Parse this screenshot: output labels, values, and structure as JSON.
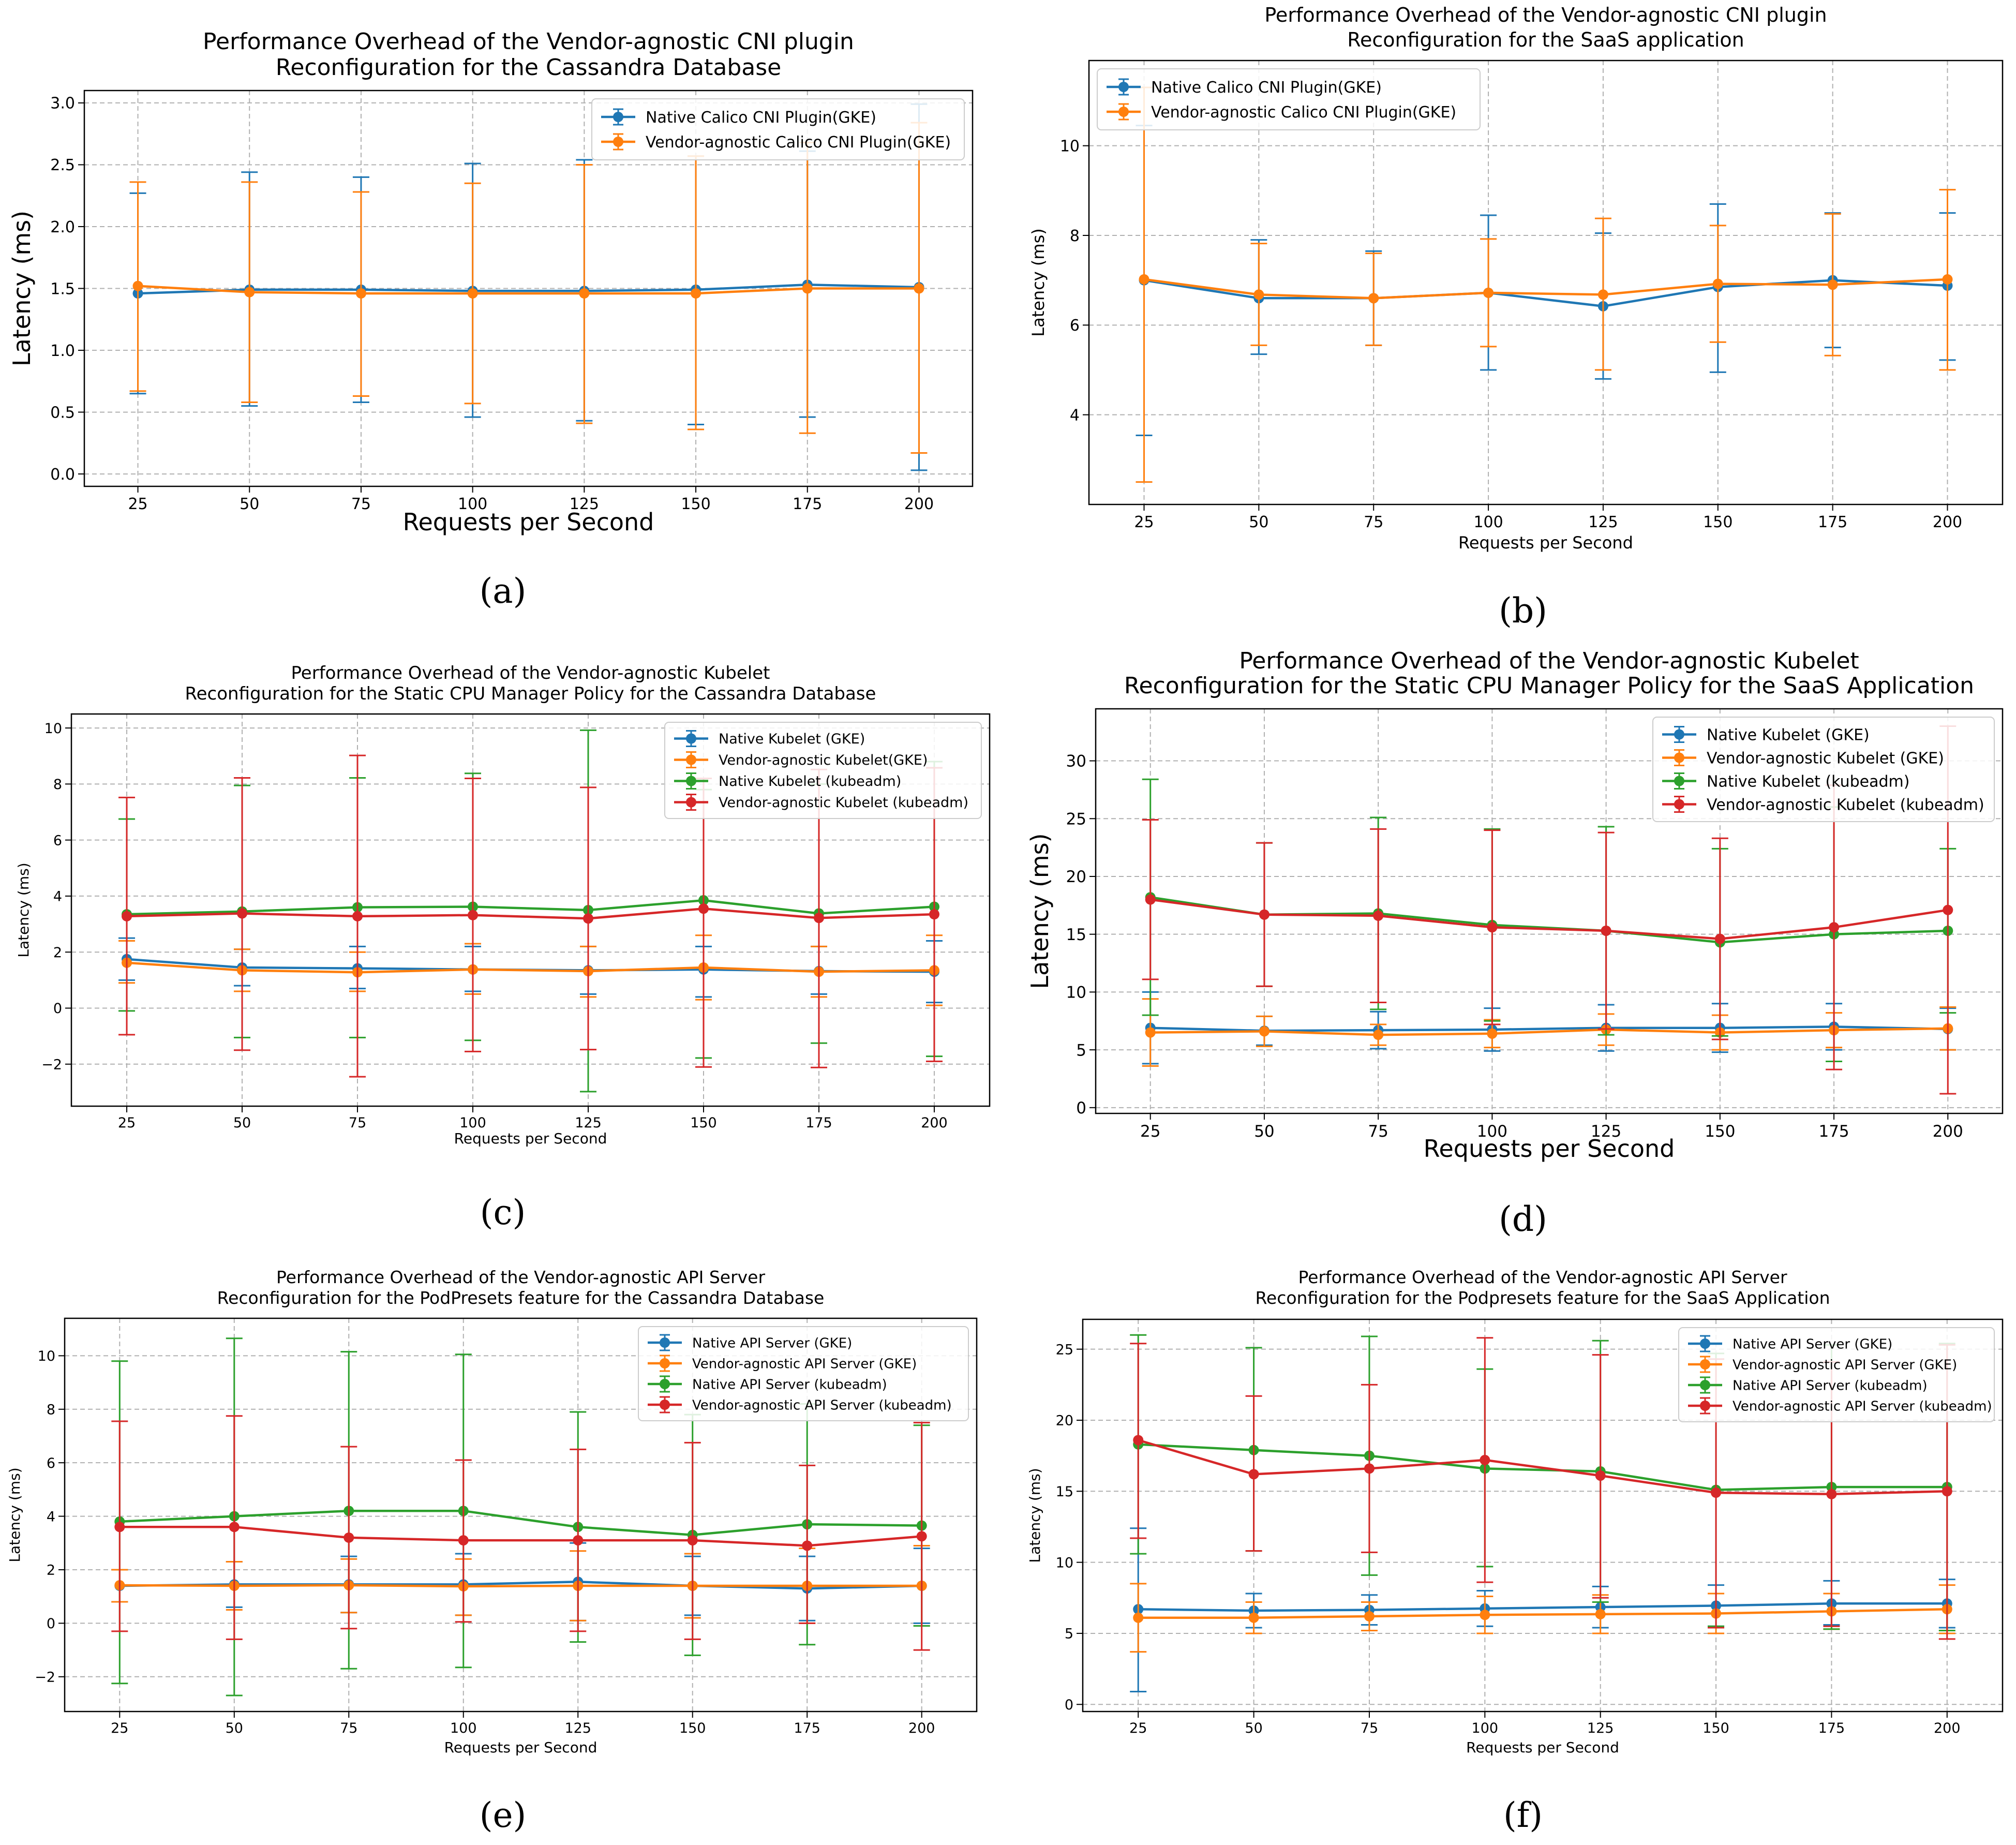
{
  "figure": {
    "captions": [
      "(a)",
      "(b)",
      "(c)",
      "(d)",
      "(e)",
      "(f)"
    ]
  },
  "chart_data": [
    {
      "id": "a",
      "type": "line",
      "title": "Performance Overhead of the Vendor-agnostic CNI plugin\nReconfiguration for the Cassandra Database",
      "xlabel": "Requests per Second",
      "ylabel": "Latency (ms)",
      "categories": [
        25,
        50,
        75,
        100,
        125,
        150,
        175,
        200
      ],
      "xlim": [
        13,
        212
      ],
      "ylim": [
        -0.1,
        3.1
      ],
      "yticks": [
        0.0,
        0.5,
        1.0,
        1.5,
        2.0,
        2.5,
        3.0
      ],
      "ytick_labels": [
        "0.0",
        "0.5",
        "1.0",
        "1.5",
        "2.0",
        "2.5",
        "3.0"
      ],
      "grid": true,
      "legend": "top-right",
      "series": [
        {
          "name": "Native Calico CNI Plugin(GKE)",
          "color": "#1f77b4",
          "values": [
            1.46,
            1.49,
            1.49,
            1.48,
            1.48,
            1.49,
            1.53,
            1.51
          ],
          "err_low": [
            0.65,
            0.55,
            0.58,
            0.46,
            0.43,
            0.4,
            0.46,
            0.03
          ],
          "err_high": [
            2.27,
            2.44,
            2.4,
            2.51,
            2.54,
            2.57,
            2.61,
            2.99
          ]
        },
        {
          "name": "Vendor-agnostic Calico CNI Plugin(GKE)",
          "color": "#ff7f0e",
          "values": [
            1.52,
            1.47,
            1.46,
            1.46,
            1.46,
            1.46,
            1.5,
            1.5
          ],
          "err_low": [
            0.67,
            0.58,
            0.63,
            0.57,
            0.41,
            0.36,
            0.33,
            0.17
          ],
          "err_high": [
            2.36,
            2.36,
            2.28,
            2.35,
            2.5,
            2.57,
            2.68,
            2.84
          ]
        }
      ]
    },
    {
      "id": "b",
      "type": "line",
      "title": "Performance Overhead of the Vendor-agnostic CNI plugin\nReconfiguration for the SaaS application",
      "xlabel": "Requests per Second",
      "ylabel": "Latency (ms)",
      "categories": [
        25,
        50,
        75,
        100,
        125,
        150,
        175,
        200
      ],
      "xlim": [
        13,
        212
      ],
      "ylim": [
        2.0,
        11.9
      ],
      "yticks": [
        4,
        6,
        8,
        10
      ],
      "ytick_labels": [
        "4",
        "6",
        "8",
        "10"
      ],
      "grid": true,
      "legend": "top-left",
      "series": [
        {
          "name": "Native Calico CNI Plugin(GKE)",
          "color": "#1f77b4",
          "values": [
            7.0,
            6.6,
            6.6,
            6.72,
            6.42,
            6.85,
            7.0,
            6.88
          ],
          "err_low": [
            3.54,
            5.35,
            5.55,
            5.0,
            4.8,
            4.95,
            5.5,
            5.22
          ],
          "err_high": [
            10.45,
            7.9,
            7.65,
            8.45,
            8.05,
            8.7,
            8.5,
            8.5
          ]
        },
        {
          "name": "Vendor-agnostic Calico CNI Plugin(GKE)",
          "color": "#ff7f0e",
          "values": [
            7.02,
            6.68,
            6.6,
            6.72,
            6.68,
            6.92,
            6.9,
            7.02
          ],
          "err_low": [
            2.5,
            5.55,
            5.55,
            5.52,
            5.0,
            5.62,
            5.32,
            5.0
          ],
          "err_high": [
            11.3,
            7.82,
            7.6,
            7.92,
            8.38,
            8.22,
            8.48,
            9.02
          ]
        }
      ]
    },
    {
      "id": "c",
      "type": "line",
      "title": "Performance Overhead of the Vendor-agnostic Kubelet\nReconfiguration for the Static CPU Manager Policy for the Cassandra Database",
      "xlabel": "Requests per Second",
      "ylabel": "Latency (ms)",
      "categories": [
        25,
        50,
        75,
        100,
        125,
        150,
        175,
        200
      ],
      "xlim": [
        13,
        212
      ],
      "ylim": [
        -3.5,
        10.5
      ],
      "yticks": [
        -2,
        0,
        2,
        4,
        6,
        8,
        10
      ],
      "ytick_labels": [
        "−2",
        "0",
        "2",
        "4",
        "6",
        "8",
        "10"
      ],
      "grid": true,
      "legend": "top-right",
      "series": [
        {
          "name": "Native Kubelet (GKE)",
          "color": "#1f77b4",
          "values": [
            1.75,
            1.45,
            1.42,
            1.38,
            1.35,
            1.38,
            1.32,
            1.3
          ],
          "err_low": [
            1.0,
            0.8,
            0.7,
            0.6,
            0.5,
            0.4,
            0.5,
            0.2
          ],
          "err_high": [
            2.5,
            2.1,
            2.2,
            2.2,
            2.2,
            2.2,
            2.2,
            2.4
          ]
        },
        {
          "name": "Vendor-agnostic Kubelet(GKE)",
          "color": "#ff7f0e",
          "values": [
            1.62,
            1.35,
            1.28,
            1.38,
            1.32,
            1.45,
            1.3,
            1.35
          ],
          "err_low": [
            0.9,
            0.6,
            0.6,
            0.5,
            0.4,
            0.3,
            0.4,
            0.1
          ],
          "err_high": [
            2.4,
            2.1,
            2.0,
            2.3,
            2.2,
            2.6,
            2.2,
            2.6
          ]
        },
        {
          "name": "Native Kubelet (kubeadm)",
          "color": "#2ca02c",
          "values": [
            3.35,
            3.45,
            3.6,
            3.62,
            3.5,
            3.85,
            3.38,
            3.62
          ],
          "err_low": [
            -0.1,
            -1.05,
            -1.05,
            -1.15,
            -2.98,
            -1.78,
            -1.25,
            -1.72
          ],
          "err_high": [
            6.75,
            7.95,
            8.22,
            8.38,
            9.92,
            7.8,
            8.0,
            8.8
          ]
        },
        {
          "name": "Vendor-agnostic Kubelet (kubeadm)",
          "color": "#d62728",
          "values": [
            3.28,
            3.38,
            3.28,
            3.32,
            3.2,
            3.55,
            3.22,
            3.35
          ],
          "err_low": [
            -0.95,
            -1.5,
            -2.45,
            -1.55,
            -1.48,
            -2.1,
            -2.12,
            -1.9
          ],
          "err_high": [
            7.52,
            8.22,
            9.02,
            8.2,
            7.88,
            8.2,
            8.52,
            8.58
          ]
        }
      ]
    },
    {
      "id": "d",
      "type": "line",
      "title": "Performance Overhead of the Vendor-agnostic Kubelet\nReconfiguration for the Static CPU Manager Policy for the SaaS Application",
      "xlabel": "Requests per Second",
      "ylabel": "Latency (ms)",
      "categories": [
        25,
        50,
        75,
        100,
        125,
        150,
        175,
        200
      ],
      "xlim": [
        13,
        212
      ],
      "ylim": [
        -0.5,
        34.5
      ],
      "yticks": [
        0,
        5,
        10,
        15,
        20,
        25,
        30
      ],
      "ytick_labels": [
        "0",
        "5",
        "10",
        "15",
        "20",
        "25",
        "30"
      ],
      "grid": true,
      "legend": "top-right",
      "series": [
        {
          "name": "Native Kubelet (GKE)",
          "color": "#1f77b4",
          "values": [
            6.9,
            6.65,
            6.7,
            6.75,
            6.9,
            6.9,
            7.0,
            6.8
          ],
          "err_low": [
            3.8,
            5.4,
            5.1,
            4.9,
            4.9,
            4.8,
            5.0,
            5.0
          ],
          "err_high": [
            10.0,
            7.9,
            8.3,
            8.6,
            8.9,
            9.0,
            9.0,
            8.6
          ]
        },
        {
          "name": "Vendor-agnostic Kubelet (GKE)",
          "color": "#ff7f0e",
          "values": [
            6.5,
            6.6,
            6.3,
            6.4,
            6.75,
            6.5,
            6.7,
            6.85
          ],
          "err_low": [
            3.6,
            5.3,
            5.4,
            5.2,
            5.4,
            5.0,
            5.2,
            5.0
          ],
          "err_high": [
            9.4,
            7.9,
            7.2,
            7.6,
            8.1,
            8.0,
            8.2,
            8.7
          ]
        },
        {
          "name": "Native Kubelet (kubeadm)",
          "color": "#2ca02c",
          "values": [
            18.2,
            16.7,
            16.8,
            15.8,
            15.3,
            14.3,
            15.0,
            15.3
          ],
          "err_low": [
            8.0,
            10.5,
            8.5,
            7.5,
            6.3,
            6.2,
            4.0,
            8.2
          ],
          "err_high": [
            28.4,
            22.9,
            25.1,
            24.1,
            24.3,
            22.4,
            26.0,
            22.4
          ]
        },
        {
          "name": "Vendor-agnostic Kubelet (kubeadm)",
          "color": "#d62728",
          "values": [
            18.0,
            16.7,
            16.6,
            15.6,
            15.3,
            14.6,
            15.6,
            17.1
          ],
          "err_low": [
            11.1,
            10.5,
            9.1,
            7.2,
            6.8,
            5.9,
            3.3,
            1.2
          ],
          "err_high": [
            24.9,
            22.9,
            24.1,
            24.0,
            23.8,
            23.3,
            27.9,
            33.0
          ]
        }
      ]
    },
    {
      "id": "e",
      "type": "line",
      "title": "Performance Overhead of the Vendor-agnostic API Server\nReconfiguration for the PodPresets feature for the Cassandra Database",
      "xlabel": "Requests per Second",
      "ylabel": "Latency (ms)",
      "categories": [
        25,
        50,
        75,
        100,
        125,
        150,
        175,
        200
      ],
      "xlim": [
        13,
        212
      ],
      "ylim": [
        -3.3,
        11.4
      ],
      "yticks": [
        -2,
        0,
        2,
        4,
        6,
        8,
        10
      ],
      "ytick_labels": [
        "−2",
        "0",
        "2",
        "4",
        "6",
        "8",
        "10"
      ],
      "grid": true,
      "legend": "top-right",
      "series": [
        {
          "name": "Native API Server (GKE)",
          "color": "#1f77b4",
          "values": [
            1.4,
            1.45,
            1.45,
            1.45,
            1.55,
            1.4,
            1.3,
            1.4
          ],
          "err_low": [
            0.8,
            0.6,
            0.4,
            0.3,
            0.1,
            0.3,
            0.1,
            0.0
          ],
          "err_high": [
            2.0,
            2.3,
            2.5,
            2.6,
            3.0,
            2.5,
            2.5,
            2.8
          ]
        },
        {
          "name": "Vendor-agnostic API Server (GKE)",
          "color": "#ff7f0e",
          "values": [
            1.42,
            1.4,
            1.42,
            1.38,
            1.4,
            1.4,
            1.4,
            1.4
          ],
          "err_low": [
            0.8,
            0.5,
            0.4,
            0.3,
            0.1,
            0.2,
            0.0,
            -0.1
          ],
          "err_high": [
            2.0,
            2.3,
            2.4,
            2.4,
            2.7,
            2.6,
            2.8,
            2.9
          ]
        },
        {
          "name": "Native API Server (kubeadm)",
          "color": "#2ca02c",
          "values": [
            3.8,
            4.0,
            4.2,
            4.2,
            3.6,
            3.3,
            3.7,
            3.65
          ],
          "err_low": [
            -2.25,
            -2.7,
            -1.7,
            -1.65,
            -0.7,
            -1.2,
            -0.8,
            -0.1
          ],
          "err_high": [
            9.8,
            10.65,
            10.15,
            10.05,
            7.9,
            7.8,
            8.2,
            7.4
          ]
        },
        {
          "name": "Vendor-agnostic API Server (kubeadm)",
          "color": "#d62728",
          "values": [
            3.6,
            3.6,
            3.2,
            3.1,
            3.1,
            3.1,
            2.9,
            3.25
          ],
          "err_low": [
            -0.3,
            -0.6,
            -0.2,
            0.05,
            -0.3,
            -0.6,
            0.0,
            -1.0
          ],
          "err_high": [
            7.55,
            7.75,
            6.6,
            6.1,
            6.5,
            6.75,
            5.9,
            7.5
          ]
        }
      ]
    },
    {
      "id": "f",
      "type": "line",
      "title": "Performance Overhead of the Vendor-agnostic API Server\nReconfiguration for the Podpresets feature for the SaaS Application",
      "xlabel": "Requests per Second",
      "ylabel": "Latency (ms)",
      "categories": [
        25,
        50,
        75,
        100,
        125,
        150,
        175,
        200
      ],
      "xlim": [
        13,
        212
      ],
      "ylim": [
        -0.5,
        27.1
      ],
      "yticks": [
        0,
        5,
        10,
        15,
        20,
        25
      ],
      "ytick_labels": [
        "0",
        "5",
        "10",
        "15",
        "20",
        "25"
      ],
      "grid": true,
      "legend": "top-right",
      "series": [
        {
          "name": "Native API Server (GKE)",
          "color": "#1f77b4",
          "values": [
            6.7,
            6.6,
            6.65,
            6.75,
            6.85,
            6.95,
            7.1,
            7.1
          ],
          "err_low": [
            0.9,
            5.4,
            5.6,
            5.5,
            5.4,
            5.5,
            5.6,
            5.4
          ],
          "err_high": [
            12.4,
            7.8,
            7.7,
            8.0,
            8.3,
            8.4,
            8.7,
            8.8
          ]
        },
        {
          "name": "Vendor-agnostic API Server (GKE)",
          "color": "#ff7f0e",
          "values": [
            6.1,
            6.1,
            6.2,
            6.3,
            6.35,
            6.4,
            6.55,
            6.7
          ],
          "err_low": [
            3.7,
            5.0,
            5.2,
            5.0,
            5.0,
            5.0,
            5.3,
            5.0
          ],
          "err_high": [
            8.5,
            7.2,
            7.2,
            7.6,
            7.7,
            7.8,
            7.8,
            8.4
          ]
        },
        {
          "name": "Native API Server (kubeadm)",
          "color": "#2ca02c",
          "values": [
            18.3,
            17.9,
            17.5,
            16.6,
            16.4,
            15.1,
            15.3,
            15.3
          ],
          "err_low": [
            10.6,
            10.8,
            9.1,
            9.7,
            7.2,
            5.5,
            5.3,
            5.2
          ],
          "err_high": [
            26.0,
            25.1,
            25.9,
            23.6,
            25.6,
            24.7,
            25.3,
            25.4
          ]
        },
        {
          "name": "Vendor-agnostic API Server (kubeadm)",
          "color": "#d62728",
          "values": [
            18.6,
            16.2,
            16.6,
            17.2,
            16.1,
            14.9,
            14.8,
            15.0
          ],
          "err_low": [
            11.7,
            10.8,
            10.7,
            8.6,
            7.5,
            5.4,
            5.5,
            4.6
          ],
          "err_high": [
            25.4,
            21.7,
            22.5,
            25.8,
            24.6,
            24.3,
            24.1,
            25.3
          ]
        }
      ]
    }
  ]
}
